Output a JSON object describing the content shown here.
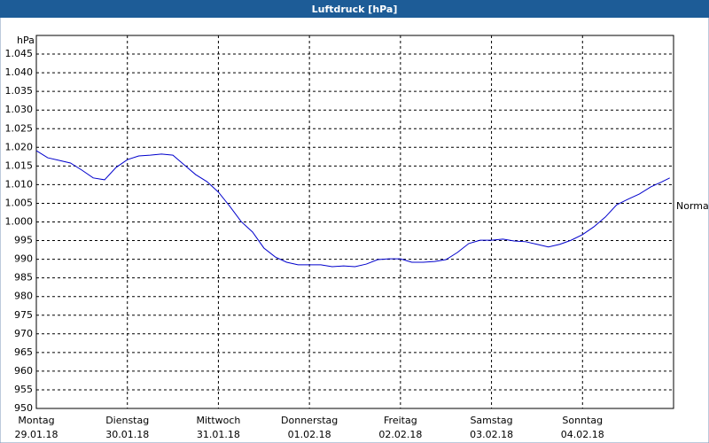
{
  "chart_data": {
    "type": "line",
    "title": "Luftdruck [hPa]",
    "y_unit": "hPa",
    "annotation": "Normal",
    "xlim": [
      0,
      168
    ],
    "xticks": [
      {
        "value": 0,
        "label": "Montag"
      },
      {
        "value": 24,
        "label": "Dienstag"
      },
      {
        "value": 48,
        "label": "Mittwoch"
      },
      {
        "value": 72,
        "label": "Donnerstag"
      },
      {
        "value": 96,
        "label": "Freitag"
      },
      {
        "value": 120,
        "label": "Samstag"
      },
      {
        "value": 144,
        "label": "Sonntag"
      }
    ],
    "dates": [
      "29.01.18",
      "30.01.18",
      "31.01.18",
      "01.02.18",
      "02.02.18",
      "03.02.18",
      "04.02.18"
    ],
    "ylim": [
      950,
      1050
    ],
    "yticks": [
      950,
      955,
      960,
      965,
      970,
      975,
      980,
      985,
      990,
      995,
      {
        "value": 1000,
        "label": "1.000"
      },
      {
        "value": 1005,
        "label": "1.005"
      },
      {
        "value": 1010,
        "label": "1.010"
      },
      {
        "value": 1015,
        "label": "1.015"
      },
      {
        "value": 1020,
        "label": "1.020"
      },
      {
        "value": 1025,
        "label": "1.025"
      },
      {
        "value": 1030,
        "label": "1.030"
      },
      {
        "value": 1035,
        "label": "1.035"
      },
      {
        "value": 1040,
        "label": "1.040"
      },
      {
        "value": 1045,
        "label": "1.045"
      }
    ],
    "grid": true,
    "x": [
      0,
      3,
      6,
      9,
      12,
      15,
      18,
      21,
      24,
      27,
      30,
      33,
      36,
      39,
      42,
      45,
      48,
      51,
      54,
      57,
      60,
      63,
      66,
      69,
      72,
      75,
      78,
      81,
      84,
      87,
      90,
      93,
      96,
      99,
      102,
      105,
      108,
      111,
      114,
      117,
      120,
      123,
      126,
      129,
      132,
      135,
      138,
      141,
      144,
      147,
      150,
      153,
      156,
      159,
      162,
      165,
      167
    ],
    "series": [
      {
        "name": "Luftdruck",
        "color": "#0000cc",
        "values": [
          1019.1,
          1017.2,
          1016.5,
          1015.8,
          1013.9,
          1011.8,
          1011.3,
          1014.6,
          1016.7,
          1017.7,
          1017.9,
          1018.2,
          1017.9,
          1015.3,
          1012.7,
          1010.8,
          1008.0,
          1004.2,
          1000.1,
          997.3,
          993.0,
          990.6,
          989.2,
          988.5,
          988.5,
          988.5,
          988.0,
          988.2,
          988.0,
          988.7,
          989.9,
          990.1,
          990.1,
          989.2,
          989.2,
          989.4,
          989.9,
          991.8,
          994.2,
          995.1,
          995.1,
          995.4,
          994.9,
          994.7,
          994.0,
          993.3,
          994.0,
          995.1,
          996.6,
          998.7,
          1001.3,
          1004.6,
          1006.1,
          1007.5,
          1009.4,
          1010.8,
          1011.8
        ]
      }
    ]
  }
}
